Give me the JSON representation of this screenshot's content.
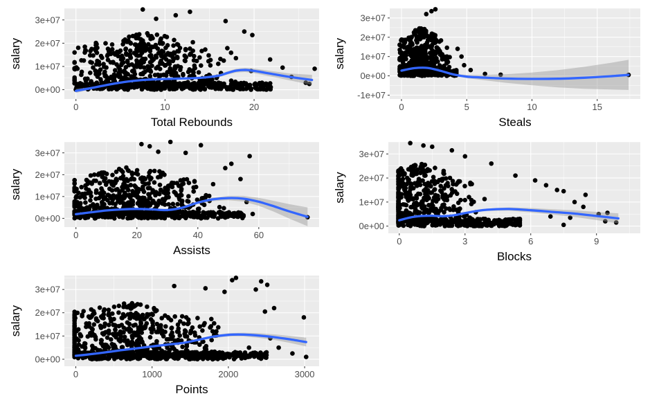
{
  "colors": {
    "panel_background": "#ebebeb",
    "grid_major": "#ffffff",
    "point": "#000000",
    "smooth_line": "#3366ff",
    "confidence_band": "#999999",
    "tick_label": "#4d4d4d"
  },
  "chart_data": [
    {
      "type": "scatter",
      "panel": "total-rebounds",
      "xlabel": "Total Rebounds",
      "ylabel": "salary",
      "grid": true,
      "xlim": [
        -1.3,
        27.3
      ],
      "ylim": [
        -4000000,
        35000000
      ],
      "x_ticks": [
        0,
        10,
        20
      ],
      "x_tick_labels": [
        "0",
        "10",
        "20"
      ],
      "y_ticks": [
        0,
        10000000,
        20000000,
        30000000
      ],
      "y_tick_labels": [
        "0e+00",
        "1e+07",
        "2e+07",
        "3e+07"
      ],
      "cloud": {
        "x_center": 8,
        "x_spread": 4,
        "x_max": 22,
        "y_base": 1500000,
        "y_max": 25000000,
        "count": 520
      },
      "outlier_points": [
        {
          "x": 7.5,
          "y": 34500000
        },
        {
          "x": 12.8,
          "y": 33500000
        },
        {
          "x": 11.2,
          "y": 32000000
        },
        {
          "x": 9.0,
          "y": 30500000
        },
        {
          "x": 16.8,
          "y": 29500000
        },
        {
          "x": 18.9,
          "y": 25000000
        },
        {
          "x": 19.8,
          "y": 23500000
        },
        {
          "x": 21.8,
          "y": 13000000
        },
        {
          "x": 23.2,
          "y": 9500000
        },
        {
          "x": 24.2,
          "y": 5500000
        },
        {
          "x": 25.8,
          "y": 3000000
        },
        {
          "x": 26.2,
          "y": 2500000
        },
        {
          "x": 26.8,
          "y": 9000000
        },
        {
          "x": 0.1,
          "y": 800000
        },
        {
          "x": 0.3,
          "y": 300000
        },
        {
          "x": 1.2,
          "y": 1000000
        },
        {
          "x": 2.3,
          "y": 19500000
        },
        {
          "x": 2.1,
          "y": 1200000
        }
      ],
      "smooth": {
        "x": [
          0,
          2,
          4,
          6,
          8,
          10,
          12,
          14,
          16,
          17,
          18,
          19,
          20,
          22,
          24,
          26.5
        ],
        "y": [
          -500000,
          900000,
          2400000,
          3600000,
          4300000,
          4600000,
          4800000,
          5100000,
          6000000,
          7200000,
          8200000,
          8500000,
          8100000,
          6800000,
          5500000,
          4200000
        ],
        "band_half_width": [
          900000,
          400000,
          300000,
          300000,
          300000,
          300000,
          300000,
          400000,
          600000,
          700000,
          800000,
          900000,
          1000000,
          1200000,
          1500000,
          2200000
        ]
      }
    },
    {
      "type": "scatter",
      "panel": "steals",
      "xlabel": "Steals",
      "ylabel": "salary",
      "grid": true,
      "xlim": [
        -0.9,
        18.3
      ],
      "ylim": [
        -12000000,
        35000000
      ],
      "x_ticks": [
        0,
        5,
        10,
        15
      ],
      "x_tick_labels": [
        "0",
        "5",
        "10",
        "15"
      ],
      "y_ticks": [
        -10000000,
        0,
        10000000,
        20000000,
        30000000
      ],
      "y_tick_labels": [
        "-1e+07",
        "0e+00",
        "1e+07",
        "2e+07",
        "3e+07"
      ],
      "cloud": {
        "x_center": 1.5,
        "x_spread": 0.9,
        "x_max": 4.2,
        "y_base": 1500000,
        "y_max": 26000000,
        "count": 420
      },
      "outlier_points": [
        {
          "x": 2.6,
          "y": 34500000
        },
        {
          "x": 2.3,
          "y": 33500000
        },
        {
          "x": 1.9,
          "y": 32000000
        },
        {
          "x": 4.3,
          "y": 14000000
        },
        {
          "x": 4.6,
          "y": 10000000
        },
        {
          "x": 4.8,
          "y": 5500000
        },
        {
          "x": 5.3,
          "y": 3000000
        },
        {
          "x": 6.4,
          "y": 1000000
        },
        {
          "x": 7.6,
          "y": 600000
        },
        {
          "x": 17.4,
          "y": 500000
        }
      ],
      "smooth": {
        "x": [
          0,
          1,
          2,
          3,
          4,
          5,
          6,
          8,
          10,
          12,
          14,
          16,
          17.4
        ],
        "y": [
          2700000,
          4000000,
          4100000,
          2600000,
          700000,
          -400000,
          -800000,
          -1400000,
          -1600000,
          -1500000,
          -1000000,
          -200000,
          500000
        ],
        "band_half_width": [
          600000,
          300000,
          300000,
          300000,
          500000,
          800000,
          1200000,
          2200000,
          3300000,
          4500000,
          5700000,
          6900000,
          7800000
        ]
      }
    },
    {
      "type": "scatter",
      "panel": "assists",
      "xlabel": "Assists",
      "ylabel": "salary",
      "grid": true,
      "xlim": [
        -3.8,
        79.8
      ],
      "ylim": [
        -4000000,
        35000000
      ],
      "x_ticks": [
        0,
        20,
        40,
        60
      ],
      "x_tick_labels": [
        "0",
        "20",
        "40",
        "60"
      ],
      "y_ticks": [
        0,
        10000000,
        20000000,
        30000000
      ],
      "y_tick_labels": [
        "0e+00",
        "1e+07",
        "2e+07",
        "3e+07"
      ],
      "cloud": {
        "x_center": 18,
        "x_spread": 12,
        "x_max": 55,
        "y_base": 1500000,
        "y_max": 24000000,
        "count": 520
      },
      "outlier_points": [
        {
          "x": 21.5,
          "y": 34000000
        },
        {
          "x": 24.2,
          "y": 33000000
        },
        {
          "x": 31.0,
          "y": 35000000
        },
        {
          "x": 41.0,
          "y": 33500000
        },
        {
          "x": 27.0,
          "y": 30500000
        },
        {
          "x": 36.0,
          "y": 30000000
        },
        {
          "x": 57.0,
          "y": 28500000
        },
        {
          "x": 51.0,
          "y": 25000000
        },
        {
          "x": 49.0,
          "y": 23000000
        },
        {
          "x": 54.0,
          "y": 18000000
        },
        {
          "x": 56.0,
          "y": 7500000
        },
        {
          "x": 58.0,
          "y": 2000000
        },
        {
          "x": 76.0,
          "y": 500000
        },
        {
          "x": 0.2,
          "y": 1000000
        }
      ],
      "smooth": {
        "x": [
          0,
          5,
          10,
          15,
          20,
          25,
          30,
          35,
          40,
          45,
          50,
          55,
          60,
          65,
          70,
          76
        ],
        "y": [
          1900000,
          2800000,
          3600000,
          4100000,
          4300000,
          4100000,
          3800000,
          4900000,
          7200000,
          8700000,
          9300000,
          9000000,
          7600000,
          5500000,
          3200000,
          700000
        ],
        "band_half_width": [
          400000,
          300000,
          300000,
          300000,
          300000,
          300000,
          400000,
          500000,
          600000,
          800000,
          1000000,
          1300000,
          1800000,
          2500000,
          3300000,
          4300000
        ]
      }
    },
    {
      "type": "scatter",
      "panel": "blocks",
      "xlabel": "Blocks",
      "ylabel": "salary",
      "grid": true,
      "xlim": [
        -0.5,
        11.0
      ],
      "ylim": [
        -3000000,
        35000000
      ],
      "x_ticks": [
        0,
        3,
        6,
        9
      ],
      "x_tick_labels": [
        "0",
        "3",
        "6",
        "9"
      ],
      "y_ticks": [
        0,
        10000000,
        20000000,
        30000000
      ],
      "y_tick_labels": [
        "0e+00",
        "1e+07",
        "2e+07",
        "3e+07"
      ],
      "cloud": {
        "x_center": 0.8,
        "x_spread": 1.2,
        "x_max": 5.5,
        "y_base": 1500000,
        "y_max": 26000000,
        "count": 460
      },
      "outlier_points": [
        {
          "x": 0.5,
          "y": 34500000
        },
        {
          "x": 1.1,
          "y": 33500000
        },
        {
          "x": 1.5,
          "y": 33000000
        },
        {
          "x": 2.4,
          "y": 31500000
        },
        {
          "x": 3.0,
          "y": 29000000
        },
        {
          "x": 4.2,
          "y": 26000000
        },
        {
          "x": 5.3,
          "y": 21000000
        },
        {
          "x": 6.2,
          "y": 19000000
        },
        {
          "x": 6.7,
          "y": 17000000
        },
        {
          "x": 7.2,
          "y": 15000000
        },
        {
          "x": 7.5,
          "y": 14500000
        },
        {
          "x": 8.5,
          "y": 13000000
        },
        {
          "x": 8.0,
          "y": 10000000
        },
        {
          "x": 8.4,
          "y": 8000000
        },
        {
          "x": 9.1,
          "y": 5000000
        },
        {
          "x": 9.5,
          "y": 5500000
        },
        {
          "x": 9.4,
          "y": 2000000
        },
        {
          "x": 9.9,
          "y": 1500000
        },
        {
          "x": 7.5,
          "y": 500000
        },
        {
          "x": 7.8,
          "y": 3500000
        },
        {
          "x": 6.9,
          "y": 4000000
        }
      ],
      "smooth": {
        "x": [
          0,
          0.5,
          1,
          1.5,
          2,
          2.5,
          3,
          3.5,
          4,
          5,
          6,
          7,
          8,
          9,
          10
        ],
        "y": [
          2400000,
          3600000,
          4200000,
          4300000,
          4100000,
          4500000,
          5400000,
          6200000,
          6800000,
          7100000,
          6600000,
          5900000,
          5200000,
          4200000,
          3200000
        ],
        "band_half_width": [
          300000,
          300000,
          300000,
          300000,
          300000,
          300000,
          400000,
          400000,
          500000,
          700000,
          900000,
          1100000,
          1400000,
          1700000,
          2100000
        ]
      }
    },
    {
      "type": "scatter",
      "panel": "points",
      "xlabel": "Points",
      "ylabel": "salary",
      "grid": true,
      "xlim": [
        -150,
        3190
      ],
      "ylim": [
        -3000000,
        36000000
      ],
      "x_ticks": [
        0,
        1000,
        2000,
        3000
      ],
      "x_tick_labels": [
        "0",
        "1000",
        "2000",
        "3000"
      ],
      "y_ticks": [
        0,
        10000000,
        20000000,
        30000000
      ],
      "y_tick_labels": [
        "0e+00",
        "1e+07",
        "2e+07",
        "3e+07"
      ],
      "cloud": {
        "x_center": 700,
        "x_spread": 550,
        "x_max": 2500,
        "y_base": 1500000,
        "y_max": 25000000,
        "count": 560
      },
      "outlier_points": [
        {
          "x": 2100,
          "y": 35000000
        },
        {
          "x": 2050,
          "y": 34000000
        },
        {
          "x": 2430,
          "y": 33500000
        },
        {
          "x": 2510,
          "y": 32000000
        },
        {
          "x": 1290,
          "y": 31500000
        },
        {
          "x": 1700,
          "y": 30500000
        },
        {
          "x": 2360,
          "y": 30000000
        },
        {
          "x": 1950,
          "y": 29000000
        },
        {
          "x": 2600,
          "y": 22000000
        },
        {
          "x": 2480,
          "y": 20500000
        },
        {
          "x": 2990,
          "y": 18000000
        },
        {
          "x": 2550,
          "y": 9000000
        },
        {
          "x": 2660,
          "y": 5000000
        },
        {
          "x": 2840,
          "y": 2500000
        },
        {
          "x": 3020,
          "y": 1000000
        }
      ],
      "smooth": {
        "x": [
          0,
          200,
          400,
          600,
          800,
          1000,
          1200,
          1400,
          1600,
          1800,
          2000,
          2200,
          2400,
          2600,
          2800,
          3020
        ],
        "y": [
          1500000,
          2200000,
          3000000,
          3900000,
          4700000,
          5500000,
          6300000,
          7000000,
          8300000,
          9700000,
          10500000,
          10600000,
          10200000,
          9500000,
          8600000,
          7400000
        ],
        "band_half_width": [
          300000,
          300000,
          300000,
          300000,
          300000,
          300000,
          300000,
          400000,
          500000,
          600000,
          700000,
          800000,
          1000000,
          1200000,
          1500000,
          1900000
        ]
      }
    }
  ]
}
